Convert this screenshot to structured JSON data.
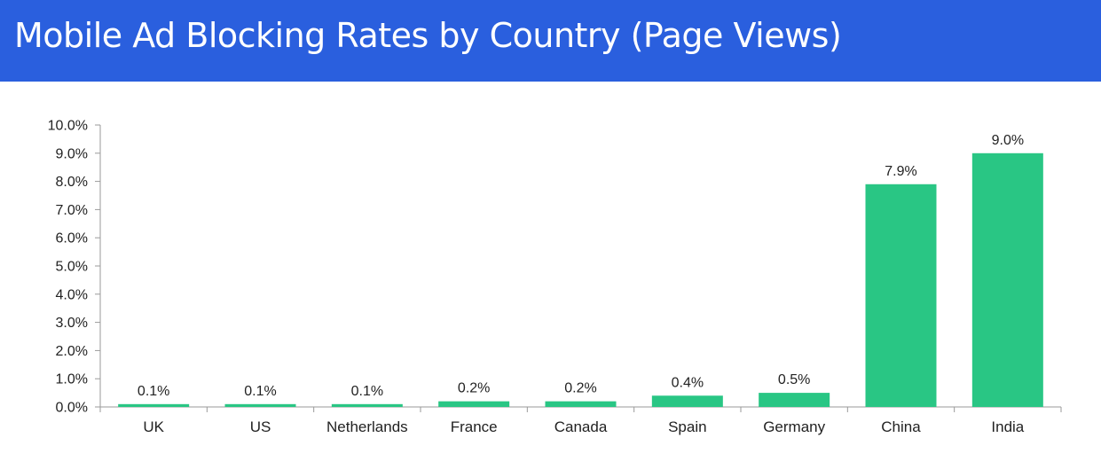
{
  "title": "Mobile Ad Blocking Rates by Country (Page Views)",
  "colors": {
    "header_bg": "#2a5fde",
    "bar": "#29c684",
    "axis": "#9a9a9a",
    "text": "#222222"
  },
  "chart_data": {
    "type": "bar",
    "categories": [
      "UK",
      "US",
      "Netherlands",
      "France",
      "Canada",
      "Spain",
      "Germany",
      "China",
      "India"
    ],
    "values": [
      0.1,
      0.1,
      0.1,
      0.2,
      0.2,
      0.4,
      0.5,
      7.9,
      9.0
    ],
    "data_labels": [
      "0.1%",
      "0.1%",
      "0.1%",
      "0.2%",
      "0.2%",
      "0.4%",
      "0.5%",
      "7.9%",
      "9.0%"
    ],
    "ylim": [
      0,
      10
    ],
    "y_ticks": [
      "0.0%",
      "1.0%",
      "2.0%",
      "3.0%",
      "4.0%",
      "5.0%",
      "6.0%",
      "7.0%",
      "8.0%",
      "9.0%",
      "10.0%"
    ],
    "grid": false,
    "legend": "none"
  }
}
